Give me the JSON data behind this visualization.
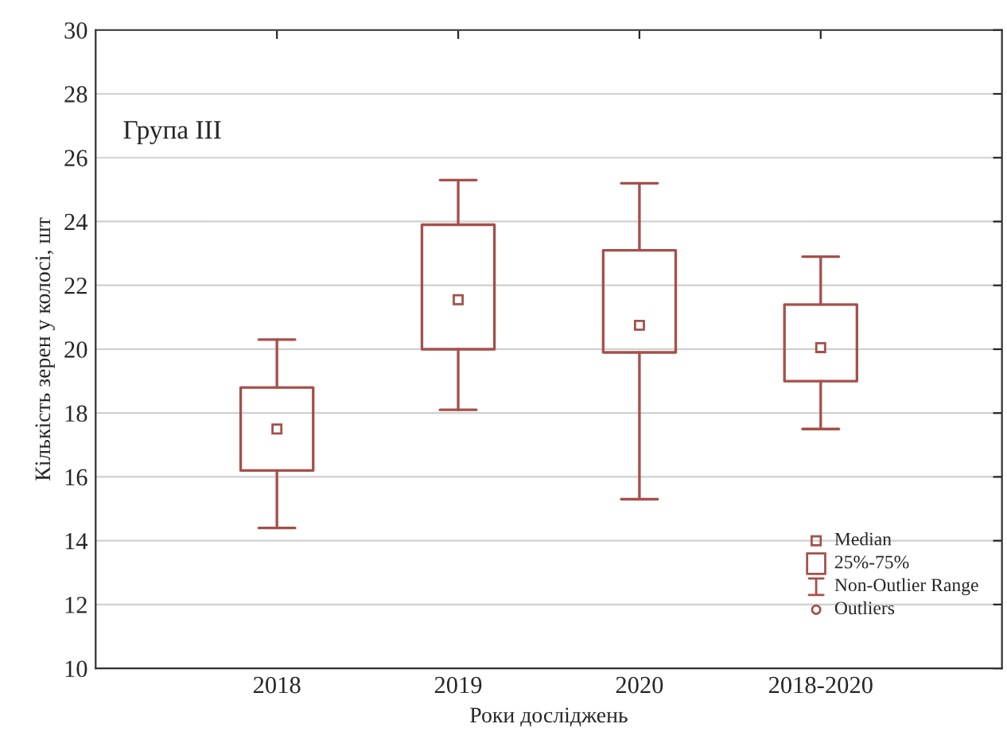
{
  "chart_data": {
    "type": "box",
    "title": "Група III",
    "xlabel": "Роки досліджень",
    "ylabel": "Кількість зерен у колосі, шт",
    "categories": [
      "2018",
      "2019",
      "2020",
      "2018-2020"
    ],
    "color": "#a5504a",
    "boxes": [
      {
        "low": 14.4,
        "q1": 16.2,
        "median": 17.5,
        "q3": 18.8,
        "high": 20.3
      },
      {
        "low": 18.1,
        "q1": 20.0,
        "median": 21.55,
        "q3": 23.9,
        "high": 25.3
      },
      {
        "low": 15.3,
        "q1": 19.9,
        "median": 20.75,
        "q3": 23.1,
        "high": 25.2
      },
      {
        "low": 17.5,
        "q1": 19.0,
        "median": 20.05,
        "q3": 21.4,
        "high": 22.9
      }
    ],
    "ylim": [
      10,
      30
    ],
    "yticks": [
      10,
      12,
      14,
      16,
      18,
      20,
      22,
      24,
      26,
      28,
      30
    ],
    "grid": "y",
    "annotations": [
      "Median",
      "25%-75%",
      "Non-Outlier Range",
      "Outliers"
    ]
  }
}
